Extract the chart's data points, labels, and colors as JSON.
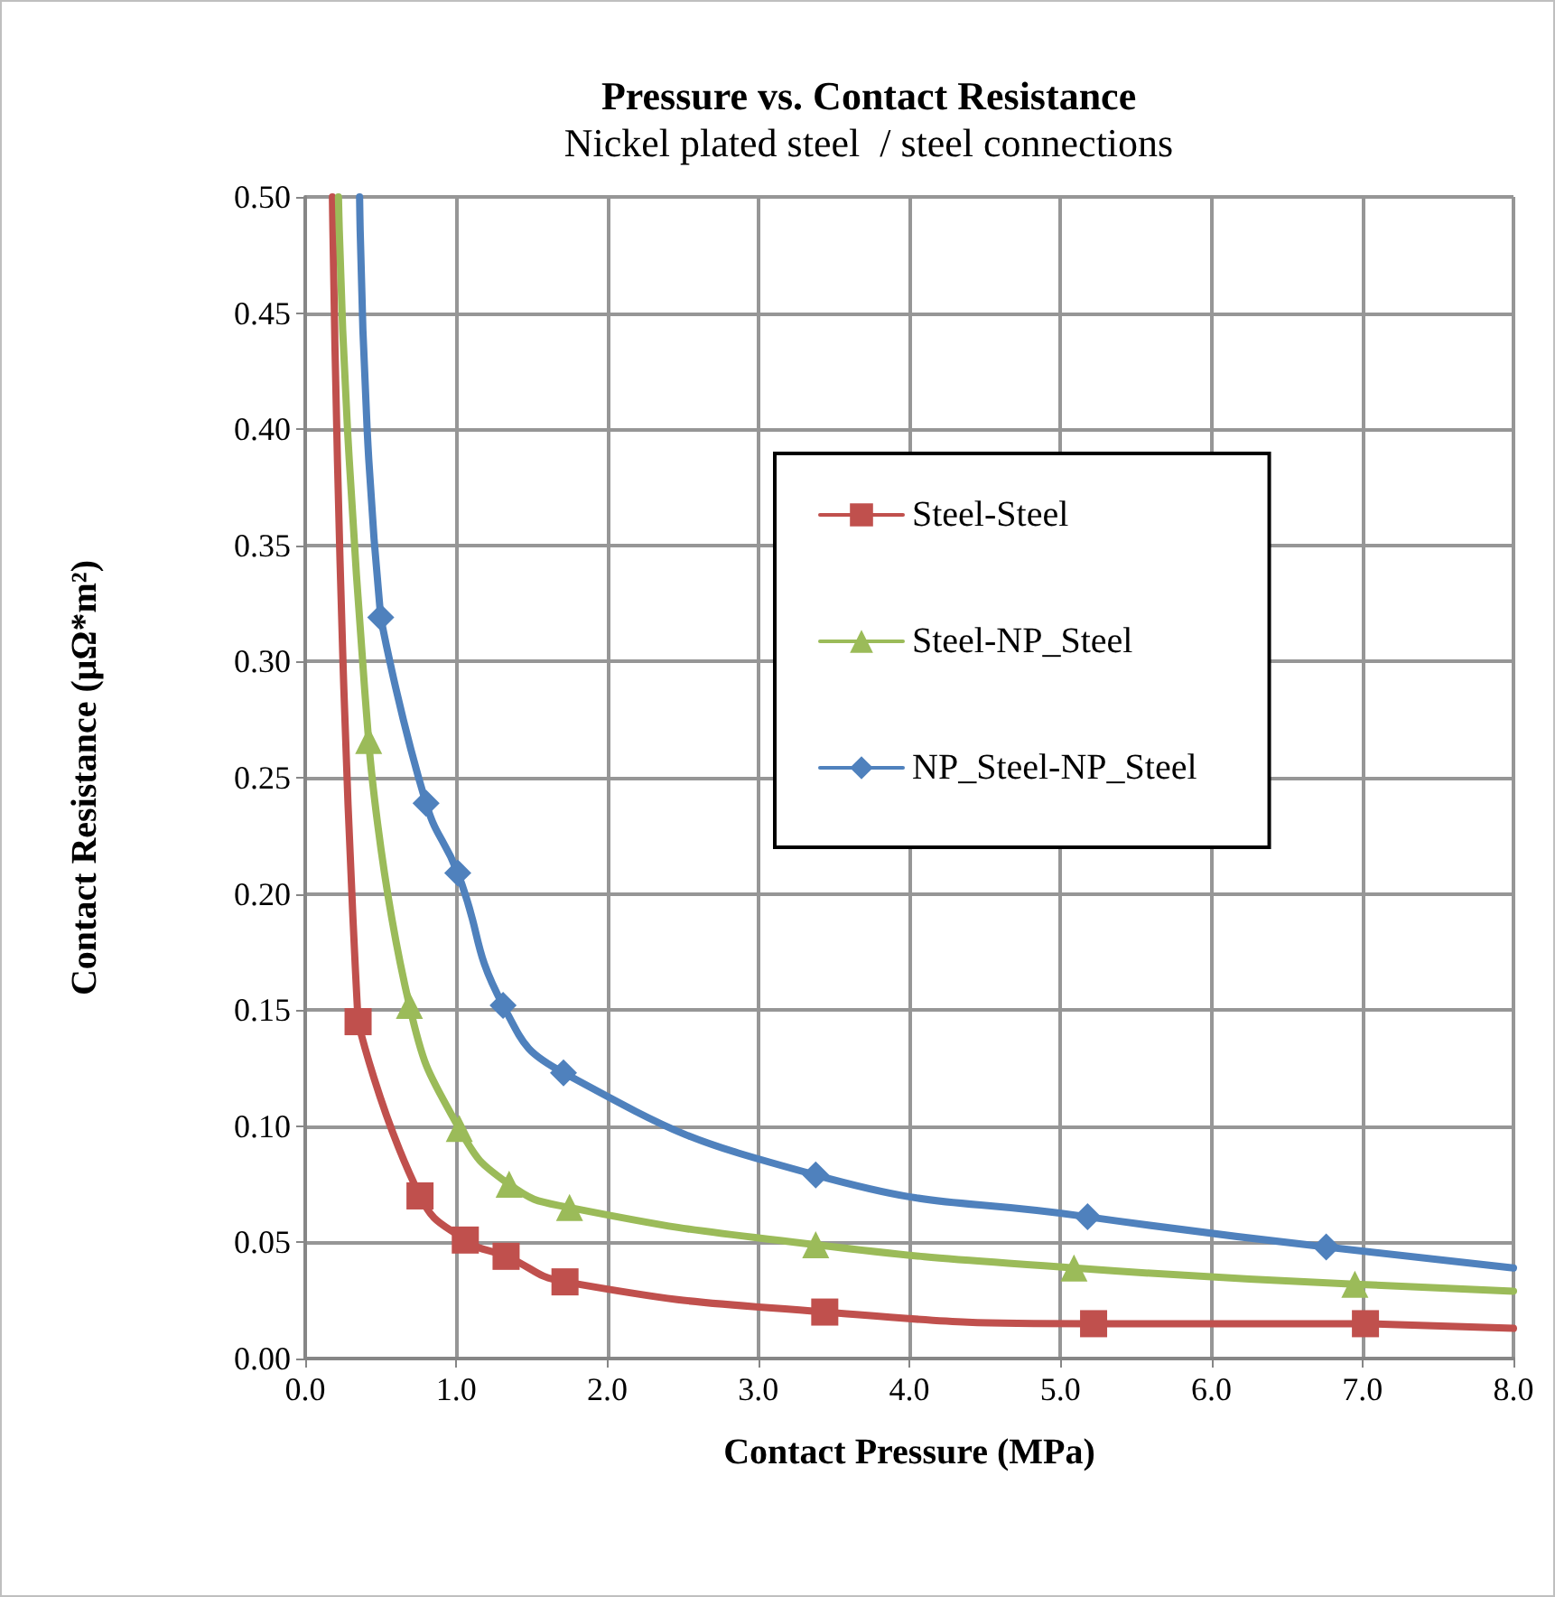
{
  "chart_data": {
    "type": "line",
    "title": "Pressure vs. Contact Resistance",
    "subtitle": "Nickel plated steel  / steel connections",
    "xlabel": "Contact Pressure (MPa)",
    "ylabel": "Contact Resistance (μΩ*m²)",
    "xlim": [
      0,
      8
    ],
    "xticks": [
      {
        "value": 0,
        "label": "0.0"
      },
      {
        "value": 1,
        "label": "1.0"
      },
      {
        "value": 2,
        "label": "2.0"
      },
      {
        "value": 3,
        "label": "3.0"
      },
      {
        "value": 4,
        "label": "4.0"
      },
      {
        "value": 5,
        "label": "5.0"
      },
      {
        "value": 6,
        "label": "6.0"
      },
      {
        "value": 7,
        "label": "7.0"
      },
      {
        "value": 8,
        "label": "8.0"
      }
    ],
    "ylim": [
      0,
      0.5
    ],
    "yticks": [
      {
        "value": 0,
        "label": "0.00"
      },
      {
        "value": 0.05,
        "label": "0.05"
      },
      {
        "value": 0.1,
        "label": "0.10"
      },
      {
        "value": 0.15,
        "label": "0.15"
      },
      {
        "value": 0.2,
        "label": "0.20"
      },
      {
        "value": 0.25,
        "label": "0.25"
      },
      {
        "value": 0.3,
        "label": "0.30"
      },
      {
        "value": 0.35,
        "label": "0.35"
      },
      {
        "value": 0.4,
        "label": "0.40"
      },
      {
        "value": 0.45,
        "label": "0.45"
      },
      {
        "value": 0.5,
        "label": "0.50"
      }
    ],
    "grid": true,
    "legend": "center",
    "line_style": "solid",
    "series": [
      {
        "name": "Steel-Steel",
        "color": "#c0504d",
        "marker": "square",
        "x": [
          0.35,
          0.76,
          1.06,
          1.33,
          1.72,
          3.44,
          5.22,
          7.02
        ],
        "values": [
          0.145,
          0.07,
          0.051,
          0.044,
          0.033,
          0.02,
          0.015,
          0.015
        ]
      },
      {
        "name": "Steel-NP_Steel",
        "color": "#9bbb59",
        "marker": "triangle",
        "x": [
          0.42,
          0.69,
          1.02,
          1.35,
          1.75,
          3.38,
          5.09,
          6.95
        ],
        "values": [
          0.266,
          0.152,
          0.099,
          0.075,
          0.065,
          0.049,
          0.039,
          0.032
        ]
      },
      {
        "name": "NP_Steel-NP_Steel",
        "color": "#4f81bd",
        "marker": "diamond",
        "x": [
          0.5,
          0.8,
          1.01,
          1.31,
          1.71,
          3.38,
          5.18,
          6.76
        ],
        "values": [
          0.319,
          0.239,
          0.209,
          0.152,
          0.123,
          0.079,
          0.061,
          0.048
        ]
      },
      {
        "color": "#c0504d",
        "marker": "none",
        "x": [
          0.18,
          0.25,
          0.35
        ],
        "values": [
          0.5,
          0.3,
          0.145
        ]
      },
      {
        "color": "#c0504d",
        "marker": "none",
        "x": [
          7.02,
          8.0
        ],
        "values": [
          0.015,
          0.013
        ]
      },
      {
        "color": "#9bbb59",
        "marker": "none",
        "x": [
          0.22,
          0.28,
          0.42
        ],
        "values": [
          0.5,
          0.4,
          0.266
        ]
      },
      {
        "color": "#9bbb59",
        "marker": "none",
        "x": [
          6.95,
          8.0
        ],
        "values": [
          0.032,
          0.029
        ]
      },
      {
        "color": "#4f81bd",
        "marker": "none",
        "x": [
          0.36,
          0.41,
          0.5
        ],
        "values": [
          0.5,
          0.4,
          0.319
        ]
      },
      {
        "color": "#4f81bd",
        "marker": "none",
        "x": [
          6.76,
          8.0
        ],
        "values": [
          0.048,
          0.039
        ]
      }
    ]
  }
}
